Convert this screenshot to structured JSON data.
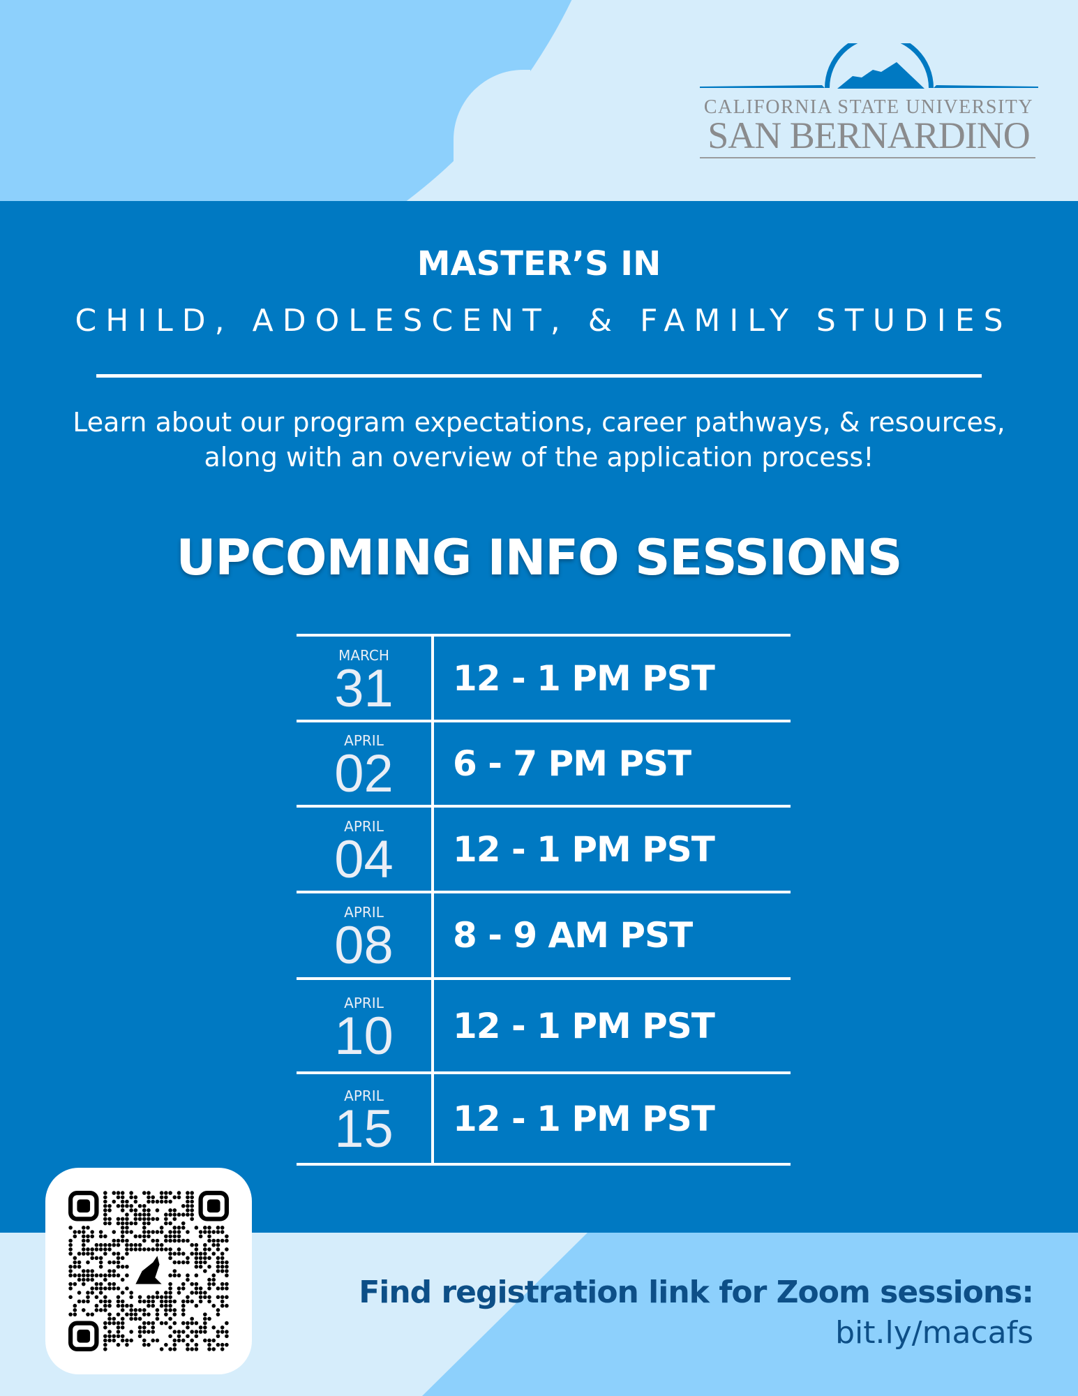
{
  "logo": {
    "line1": "CALIFORNIA STATE UNIVERSITY",
    "line2": "SAN BERNARDINO"
  },
  "header": {
    "title": "MASTER’S IN",
    "program": "CHILD, ADOLESCENT, & FAMILY STUDIES"
  },
  "description": "Learn about our program expectations, career pathways, & resources, along with an overview of the application process!",
  "sessions_heading": "UPCOMING INFO SESSIONS",
  "sessions": [
    {
      "month": "MARCH",
      "day": "31",
      "time": "12 - 1 PM PST"
    },
    {
      "month": "APRIL",
      "day": "02",
      "time": "6 - 7 PM PST"
    },
    {
      "month": "APRIL",
      "day": "04",
      "time": "12 - 1 PM PST"
    },
    {
      "month": "APRIL",
      "day": "08",
      "time": "8 - 9 AM PST"
    },
    {
      "month": "APRIL",
      "day": "10",
      "time": "12 - 1 PM PST"
    },
    {
      "month": "APRIL",
      "day": "15",
      "time": "12 - 1 PM PST"
    }
  ],
  "footer": {
    "cta": "Find registration link for Zoom sessions:",
    "link": "bit.ly/macafs"
  },
  "colors": {
    "primary": "#0079c2",
    "light": "#d6edfb",
    "sky": "#8dd0fc",
    "navy": "#0d4f87",
    "logo_gray": "#8a8b8d"
  },
  "icons": {
    "qr": "qr-code-icon",
    "logo": "mountain-arch-logo"
  }
}
